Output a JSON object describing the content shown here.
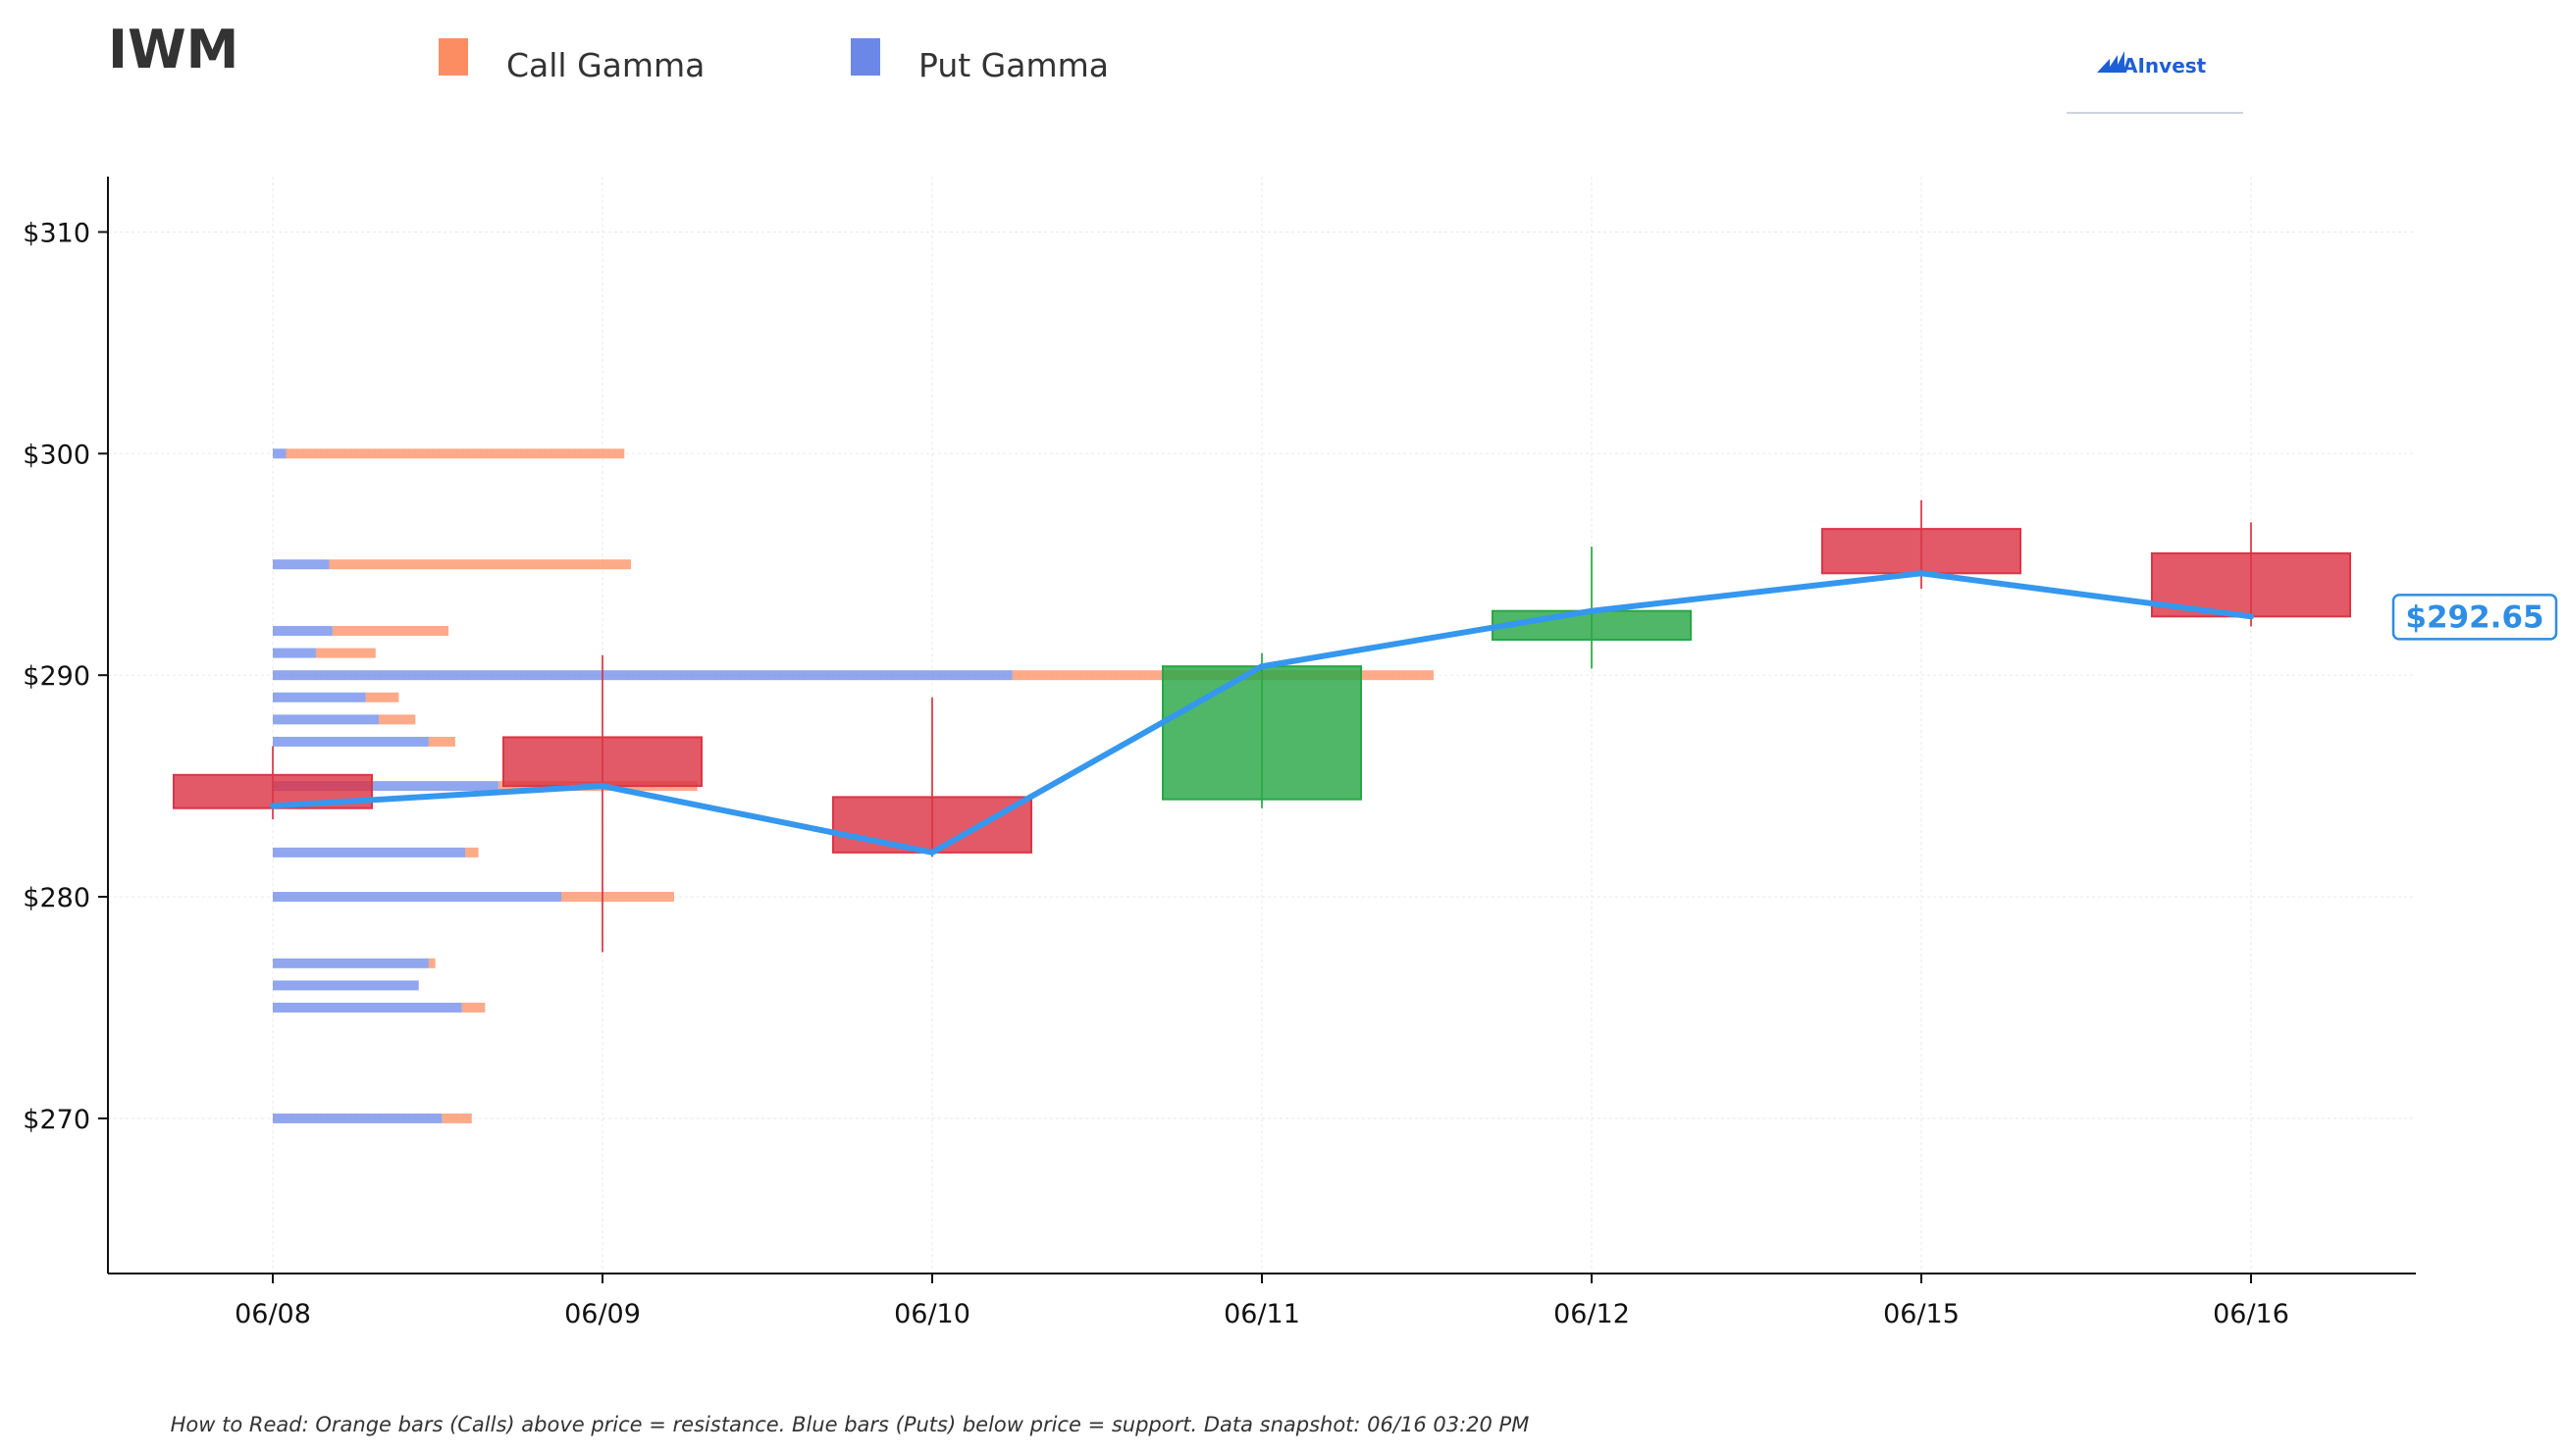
{
  "header": {
    "ticker": "IWM",
    "brand": "AInvest"
  },
  "colors": {
    "call": "#fc8d62",
    "put": "#6b88e8",
    "bearish": "#dc3545",
    "bullish": "#28a745",
    "price_line": "#3597ee",
    "price_label": "#2f8de4"
  },
  "icons": [
    "ainvest-logo-icon"
  ],
  "footnote": "How to Read: Orange bars (Calls) above price = resistance. Blue bars (Puts) below price = support. Data snapshot: 06/16 03:20 PM",
  "chart_data": {
    "type": "candlestick",
    "legend": [
      {
        "name": "Call Gamma",
        "color": "#fc8d62"
      },
      {
        "name": "Put Gamma",
        "color": "#6b88e8"
      }
    ],
    "legend_position": "top",
    "categories": [
      "06/08",
      "06/09",
      "06/10",
      "06/11",
      "06/12",
      "06/15",
      "06/16"
    ],
    "ylim": [
      263,
      312.5
    ],
    "yticks": [
      270,
      280,
      290,
      300,
      310
    ],
    "ytick_labels": [
      "$270",
      "$280",
      "$290",
      "$300",
      "$310"
    ],
    "grid": true,
    "candles": [
      {
        "date": "06/08",
        "open": 285.5,
        "high": 286.8,
        "low": 283.5,
        "close": 284.0
      },
      {
        "date": "06/09",
        "open": 287.2,
        "high": 290.9,
        "low": 277.5,
        "close": 285.0
      },
      {
        "date": "06/10",
        "open": 284.5,
        "high": 289.0,
        "low": 281.8,
        "close": 282.0
      },
      {
        "date": "06/11",
        "open": 284.4,
        "high": 291.0,
        "low": 284.0,
        "close": 290.4
      },
      {
        "date": "06/12",
        "open": 291.6,
        "high": 295.8,
        "low": 290.3,
        "close": 292.9
      },
      {
        "date": "06/15",
        "open": 296.6,
        "high": 297.9,
        "low": 293.9,
        "close": 294.6
      },
      {
        "date": "06/16",
        "open": 295.5,
        "high": 296.9,
        "low": 292.2,
        "close": 292.65
      }
    ],
    "price_line": [
      284.1,
      285.0,
      282.0,
      290.4,
      292.9,
      294.6,
      292.65
    ],
    "current_price_label": "$292.65",
    "gamma_by_strike": [
      {
        "strike": 300,
        "put": 0.04,
        "call": 1.02
      },
      {
        "strike": 295,
        "put": 0.17,
        "call": 0.91
      },
      {
        "strike": 292,
        "put": 0.18,
        "call": 0.35
      },
      {
        "strike": 291,
        "put": 0.13,
        "call": 0.18
      },
      {
        "strike": 290,
        "put": 2.23,
        "call": 1.27
      },
      {
        "strike": 289,
        "put": 0.28,
        "call": 0.1
      },
      {
        "strike": 288,
        "put": 0.32,
        "call": 0.11
      },
      {
        "strike": 287,
        "put": 0.47,
        "call": 0.08
      },
      {
        "strike": 285,
        "put": 0.68,
        "call": 0.6
      },
      {
        "strike": 282,
        "put": 0.58,
        "call": 0.04
      },
      {
        "strike": 280,
        "put": 0.87,
        "call": 0.34
      },
      {
        "strike": 277,
        "put": 0.47,
        "call": 0.02
      },
      {
        "strike": 276,
        "put": 0.44,
        "call": 0.0
      },
      {
        "strike": 275,
        "put": 0.57,
        "call": 0.07
      },
      {
        "strike": 270,
        "put": 0.51,
        "call": 0.09
      }
    ]
  }
}
